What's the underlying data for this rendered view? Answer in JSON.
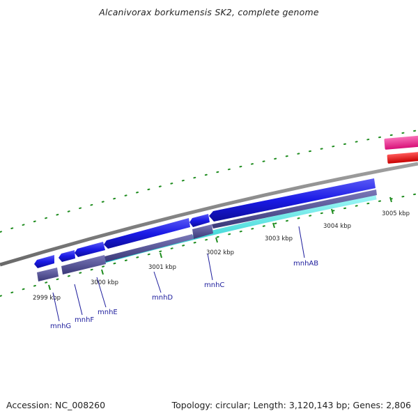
{
  "title": "Alcanivorax borkumensis SK2, complete genome",
  "footer": {
    "accession": "Accession: NC_008260",
    "summary": "Topology: circular; Length: 3,120,143 bp; Genes: 2,806"
  },
  "ticks": [
    "2999 kbp",
    "3000 kbp",
    "3001 kbp",
    "3002 kbp",
    "3003 kbp",
    "3004 kbp",
    "3005 kbp"
  ],
  "genes": [
    "mnhG",
    "mnhF",
    "mnhE",
    "mnhD",
    "mnhC",
    "mnhAB"
  ],
  "colors": {
    "cds": "#1a1ae6",
    "cds_light": "#5a5af5",
    "orthology": "#4a4890",
    "homology": "#23e6e6",
    "magenta": "#ee2290",
    "red": "#ee1111",
    "backbone": "#808080",
    "tick": "#1e8c1e",
    "gene_label": "#1c1c9c"
  }
}
